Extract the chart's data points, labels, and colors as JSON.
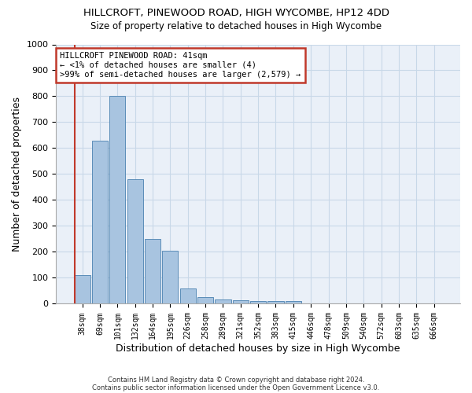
{
  "title": "HILLCROFT, PINEWOOD ROAD, HIGH WYCOMBE, HP12 4DD",
  "subtitle": "Size of property relative to detached houses in High Wycombe",
  "xlabel": "Distribution of detached houses by size in High Wycombe",
  "ylabel": "Number of detached properties",
  "footnote1": "Contains HM Land Registry data © Crown copyright and database right 2024.",
  "footnote2": "Contains public sector information licensed under the Open Government Licence v3.0.",
  "bar_labels": [
    "38sqm",
    "69sqm",
    "101sqm",
    "132sqm",
    "164sqm",
    "195sqm",
    "226sqm",
    "258sqm",
    "289sqm",
    "321sqm",
    "352sqm",
    "383sqm",
    "415sqm",
    "446sqm",
    "478sqm",
    "509sqm",
    "540sqm",
    "572sqm",
    "603sqm",
    "635sqm",
    "666sqm"
  ],
  "bar_values": [
    110,
    630,
    800,
    480,
    250,
    205,
    60,
    27,
    18,
    13,
    10,
    10,
    10,
    0,
    0,
    0,
    0,
    0,
    0,
    0,
    0
  ],
  "bar_color": "#a8c4e0",
  "bar_edge_color": "#5b8db8",
  "annotation_box_text": "HILLCROFT PINEWOOD ROAD: 41sqm\n← <1% of detached houses are smaller (4)\n>99% of semi-detached houses are larger (2,579) →",
  "annotation_box_color": "#ffffff",
  "annotation_box_edge_color": "#c0392b",
  "grid_color": "#c8d8e8",
  "background_color": "#eaf0f8",
  "ylim": [
    0,
    1000
  ],
  "yticks": [
    0,
    100,
    200,
    300,
    400,
    500,
    600,
    700,
    800,
    900,
    1000
  ]
}
